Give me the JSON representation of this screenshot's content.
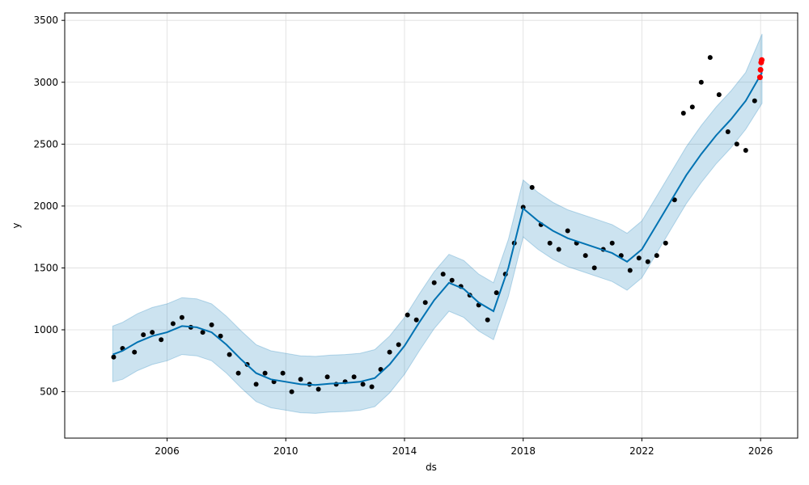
{
  "chart_data": {
    "type": "line",
    "xlabel": "ds",
    "ylabel": "y",
    "xlim": [
      2002.55,
      2027.25
    ],
    "ylim": [
      125,
      3560
    ],
    "grid": true,
    "x_ticks": [
      2006,
      2010,
      2014,
      2018,
      2022,
      2026
    ],
    "x_tick_labels": [
      "2006",
      "2010",
      "2014",
      "2018",
      "2022",
      "2026"
    ],
    "y_ticks": [
      500,
      1000,
      1500,
      2000,
      2500,
      3000,
      3500
    ],
    "y_tick_labels": [
      "500",
      "1000",
      "1500",
      "2000",
      "2500",
      "3000",
      "3500"
    ],
    "colors": {
      "forecast": "#0072B2",
      "interval": "#0072B2",
      "observed": "#000000",
      "future": "#ff0000",
      "grid": "#dddddd"
    },
    "series": [
      {
        "role": "forecast",
        "x": [
          2004.17,
          2004.5,
          2005.0,
          2005.5,
          2006.0,
          2006.5,
          2007.0,
          2007.5,
          2008.0,
          2008.5,
          2009.0,
          2009.5,
          2010.0,
          2010.5,
          2011.0,
          2011.5,
          2012.0,
          2012.5,
          2013.0,
          2013.5,
          2014.0,
          2014.5,
          2015.0,
          2015.5,
          2016.0,
          2016.5,
          2017.0,
          2017.5,
          2018.0,
          2018.5,
          2019.0,
          2019.5,
          2020.0,
          2020.5,
          2021.0,
          2021.5,
          2022.0,
          2022.5,
          2023.0,
          2023.5,
          2024.0,
          2024.5,
          2025.0,
          2025.5,
          2026.05
        ],
        "y": [
          800,
          830,
          900,
          950,
          980,
          1030,
          1020,
          980,
          880,
          760,
          650,
          600,
          580,
          560,
          555,
          565,
          570,
          580,
          610,
          720,
          870,
          1060,
          1240,
          1380,
          1330,
          1220,
          1150,
          1500,
          1980,
          1880,
          1800,
          1740,
          1700,
          1660,
          1620,
          1550,
          1650,
          1850,
          2050,
          2250,
          2420,
          2570,
          2700,
          2850,
          3080
        ]
      },
      {
        "role": "interval-upper",
        "x": [
          2004.17,
          2004.5,
          2005.0,
          2005.5,
          2006.0,
          2006.5,
          2007.0,
          2007.5,
          2008.0,
          2008.5,
          2009.0,
          2009.5,
          2010.0,
          2010.5,
          2011.0,
          2011.5,
          2012.0,
          2012.5,
          2013.0,
          2013.5,
          2014.0,
          2014.5,
          2015.0,
          2015.5,
          2016.0,
          2016.5,
          2017.0,
          2017.5,
          2018.0,
          2018.5,
          2019.0,
          2019.5,
          2020.0,
          2020.5,
          2021.0,
          2021.5,
          2022.0,
          2022.5,
          2023.0,
          2023.5,
          2024.0,
          2024.5,
          2025.0,
          2025.5,
          2026.05
        ],
        "y": [
          1030,
          1060,
          1130,
          1180,
          1210,
          1260,
          1250,
          1210,
          1110,
          990,
          880,
          830,
          810,
          790,
          785,
          795,
          800,
          810,
          840,
          950,
          1100,
          1290,
          1470,
          1610,
          1560,
          1450,
          1380,
          1730,
          2210,
          2110,
          2030,
          1970,
          1930,
          1890,
          1850,
          1780,
          1880,
          2080,
          2280,
          2480,
          2650,
          2800,
          2930,
          3080,
          3390
        ]
      },
      {
        "role": "interval-lower",
        "x": [
          2004.17,
          2004.5,
          2005.0,
          2005.5,
          2006.0,
          2006.5,
          2007.0,
          2007.5,
          2008.0,
          2008.5,
          2009.0,
          2009.5,
          2010.0,
          2010.5,
          2011.0,
          2011.5,
          2012.0,
          2012.5,
          2013.0,
          2013.5,
          2014.0,
          2014.5,
          2015.0,
          2015.5,
          2016.0,
          2016.5,
          2017.0,
          2017.5,
          2018.0,
          2018.5,
          2019.0,
          2019.5,
          2020.0,
          2020.5,
          2021.0,
          2021.5,
          2022.0,
          2022.5,
          2023.0,
          2023.5,
          2024.0,
          2024.5,
          2025.0,
          2025.5,
          2026.05
        ],
        "y": [
          580,
          600,
          670,
          720,
          750,
          800,
          790,
          750,
          650,
          530,
          420,
          370,
          350,
          330,
          325,
          335,
          340,
          350,
          380,
          490,
          640,
          830,
          1010,
          1150,
          1100,
          990,
          920,
          1270,
          1750,
          1650,
          1570,
          1510,
          1470,
          1430,
          1390,
          1320,
          1420,
          1620,
          1820,
          2020,
          2190,
          2340,
          2470,
          2620,
          2830
        ]
      },
      {
        "role": "observed",
        "x": [
          2004.2,
          2004.5,
          2004.9,
          2005.2,
          2005.5,
          2005.8,
          2006.2,
          2006.5,
          2006.8,
          2007.2,
          2007.5,
          2007.8,
          2008.1,
          2008.4,
          2008.7,
          2009.0,
          2009.3,
          2009.6,
          2009.9,
          2010.2,
          2010.5,
          2010.8,
          2011.1,
          2011.4,
          2011.7,
          2012.0,
          2012.3,
          2012.6,
          2012.9,
          2013.2,
          2013.5,
          2013.8,
          2014.1,
          2014.4,
          2014.7,
          2015.0,
          2015.3,
          2015.6,
          2015.9,
          2016.2,
          2016.5,
          2016.8,
          2017.1,
          2017.4,
          2017.7,
          2018.0,
          2018.3,
          2018.6,
          2018.9,
          2019.2,
          2019.5,
          2019.8,
          2020.1,
          2020.4,
          2020.7,
          2021.0,
          2021.3,
          2021.6,
          2021.9,
          2022.2,
          2022.5,
          2022.8,
          2023.1,
          2023.4,
          2023.7,
          2024.0,
          2024.3,
          2024.6,
          2024.9,
          2025.2,
          2025.5,
          2025.8
        ],
        "y": [
          780,
          850,
          820,
          960,
          980,
          920,
          1050,
          1100,
          1020,
          980,
          1040,
          950,
          800,
          650,
          720,
          560,
          650,
          580,
          650,
          500,
          600,
          560,
          520,
          620,
          560,
          580,
          620,
          560,
          540,
          680,
          820,
          880,
          1120,
          1080,
          1220,
          1380,
          1450,
          1400,
          1350,
          1280,
          1200,
          1080,
          1300,
          1450,
          1700,
          1990,
          2150,
          1850,
          1700,
          1650,
          1800,
          1700,
          1600,
          1500,
          1650,
          1700,
          1600,
          1480,
          1580,
          1550,
          1600,
          1700,
          2050,
          2750,
          2800,
          3000,
          3200,
          2900,
          2600,
          2500,
          2450,
          2850
        ]
      },
      {
        "role": "future",
        "x": [
          2025.98,
          2026.0,
          2026.02,
          2026.04
        ],
        "y": [
          3040,
          3100,
          3160,
          3180
        ]
      }
    ]
  }
}
